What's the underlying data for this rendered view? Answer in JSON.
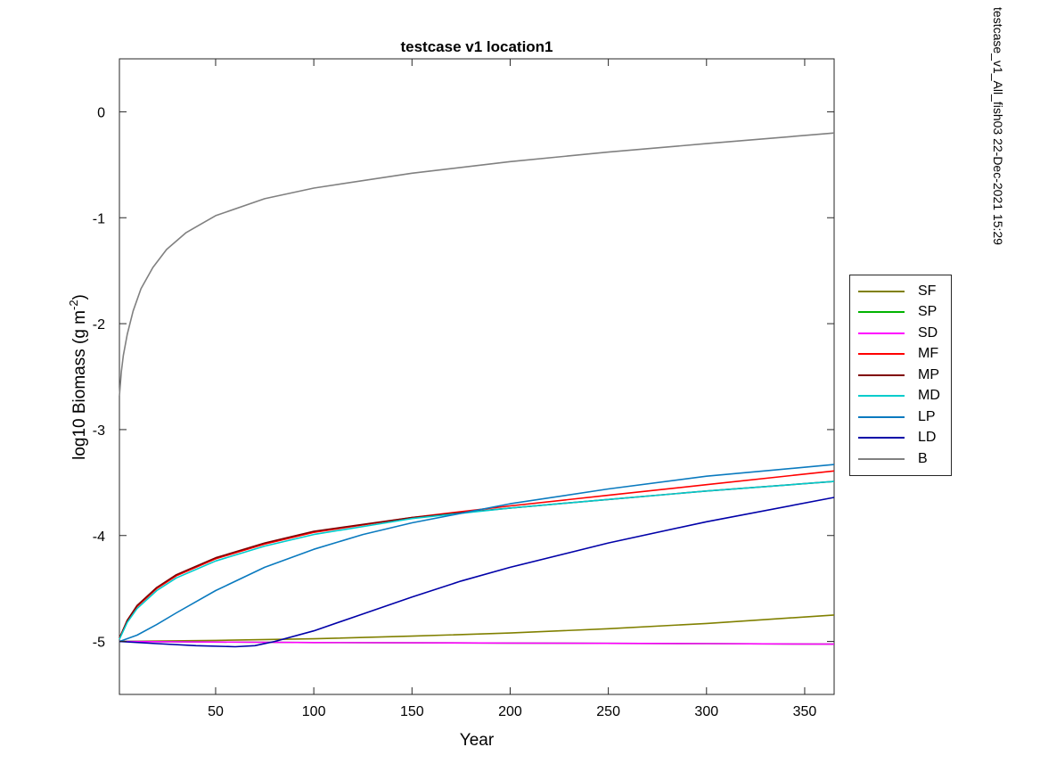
{
  "side_note": "testcase_v1_All_fish03 22-Dec-2021 15:29",
  "chart_data": {
    "type": "line",
    "title": "testcase v1 location1",
    "xlabel": "Year",
    "ylabel_prefix": "log10 Biomass (g m",
    "ylabel_exponent": "-2",
    "ylabel_suffix": ")",
    "xlim": [
      1,
      365
    ],
    "ylim": [
      -5.5,
      0.5
    ],
    "xticks": [
      50,
      100,
      150,
      200,
      250,
      300,
      350
    ],
    "yticks": [
      0,
      -1,
      -2,
      -3,
      -4,
      -5
    ],
    "grid": false,
    "legend_placement": "outside-right",
    "series": [
      {
        "name": "SF",
        "color": "#808000",
        "x": [
          1,
          50,
          100,
          150,
          200,
          250,
          300,
          365
        ],
        "y": [
          -5.0,
          -4.99,
          -4.975,
          -4.95,
          -4.92,
          -4.88,
          -4.83,
          -4.75
        ]
      },
      {
        "name": "SP",
        "color": "#00b300",
        "x": [
          1,
          100,
          200,
          300,
          365
        ],
        "y": [
          -5.0,
          -5.01,
          -5.015,
          -5.02,
          -5.025
        ]
      },
      {
        "name": "SD",
        "color": "#ff00ff",
        "x": [
          1,
          100,
          200,
          300,
          365
        ],
        "y": [
          -5.0,
          -5.01,
          -5.015,
          -5.02,
          -5.025
        ]
      },
      {
        "name": "MF",
        "color": "#ff0000",
        "x": [
          1,
          5,
          10,
          20,
          30,
          50,
          75,
          100,
          150,
          200,
          250,
          300,
          365
        ],
        "y": [
          -4.97,
          -4.8,
          -4.67,
          -4.5,
          -4.38,
          -4.22,
          -4.08,
          -3.97,
          -3.83,
          -3.72,
          -3.62,
          -3.52,
          -3.39
        ]
      },
      {
        "name": "MP",
        "color": "#800000",
        "x": [
          1,
          5,
          10,
          20,
          30,
          50,
          75,
          100,
          150,
          200,
          250,
          300,
          365
        ],
        "y": [
          -4.97,
          -4.8,
          -4.66,
          -4.49,
          -4.37,
          -4.21,
          -4.07,
          -3.96,
          -3.83,
          -3.74,
          -3.66,
          -3.58,
          -3.49
        ]
      },
      {
        "name": "MD",
        "color": "#00cccc",
        "x": [
          1,
          5,
          10,
          20,
          30,
          50,
          75,
          100,
          150,
          200,
          250,
          300,
          365
        ],
        "y": [
          -4.98,
          -4.82,
          -4.69,
          -4.52,
          -4.4,
          -4.24,
          -4.1,
          -3.99,
          -3.84,
          -3.74,
          -3.66,
          -3.58,
          -3.49
        ]
      },
      {
        "name": "LP",
        "color": "#0a7abf",
        "x": [
          1,
          10,
          20,
          30,
          50,
          75,
          100,
          125,
          150,
          175,
          200,
          250,
          300,
          365
        ],
        "y": [
          -5.0,
          -4.94,
          -4.84,
          -4.73,
          -4.52,
          -4.3,
          -4.13,
          -3.99,
          -3.88,
          -3.79,
          -3.7,
          -3.56,
          -3.44,
          -3.33
        ]
      },
      {
        "name": "LD",
        "color": "#0000a8",
        "x": [
          1,
          20,
          40,
          60,
          70,
          80,
          100,
          125,
          150,
          175,
          200,
          250,
          300,
          365
        ],
        "y": [
          -5.0,
          -5.02,
          -5.04,
          -5.05,
          -5.04,
          -5.0,
          -4.9,
          -4.74,
          -4.58,
          -4.43,
          -4.3,
          -4.07,
          -3.87,
          -3.64
        ]
      },
      {
        "name": "B",
        "color": "#808080",
        "x": [
          1,
          2,
          3,
          5,
          8,
          12,
          18,
          25,
          35,
          50,
          75,
          100,
          150,
          200,
          250,
          300,
          365
        ],
        "y": [
          -2.68,
          -2.45,
          -2.3,
          -2.1,
          -1.88,
          -1.67,
          -1.47,
          -1.3,
          -1.14,
          -0.98,
          -0.82,
          -0.72,
          -0.58,
          -0.47,
          -0.38,
          -0.3,
          -0.2
        ]
      }
    ]
  }
}
